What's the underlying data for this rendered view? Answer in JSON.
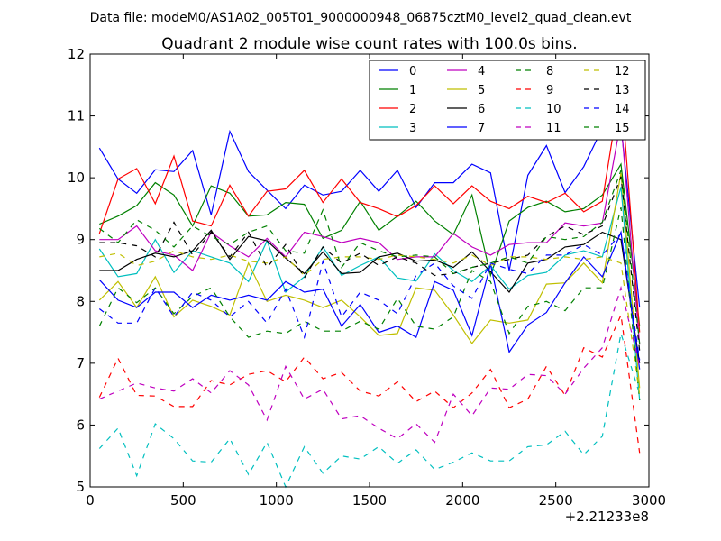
{
  "chart_data": {
    "type": "line",
    "suptitle": "Data file: modeM0/AS1A02_005T01_9000000948_06875cztM0_level2_quad_clean.evt",
    "title": "Quadrant 2 module wise count rates with 100.0s bins.",
    "xlabel": "",
    "ylabel": "",
    "x_offset_label": "+2.21233e8",
    "xlim": [
      0,
      3000
    ],
    "ylim": [
      5,
      12
    ],
    "x_ticks": [
      0,
      500,
      1000,
      1500,
      2000,
      2500,
      3000
    ],
    "y_ticks": [
      5,
      6,
      7,
      8,
      9,
      10,
      11,
      12
    ],
    "grid": false,
    "legend_position": "top-right",
    "x": [
      50,
      150,
      250,
      350,
      450,
      550,
      650,
      750,
      850,
      950,
      1050,
      1150,
      1250,
      1350,
      1450,
      1550,
      1650,
      1750,
      1850,
      1950,
      2050,
      2150,
      2250,
      2350,
      2450,
      2550,
      2650,
      2750,
      2850,
      2950
    ],
    "series": [
      {
        "name": "0",
        "color": "#0000ff",
        "dash": "solid",
        "values": [
          10.48,
          9.98,
          9.75,
          10.13,
          10.1,
          10.44,
          9.4,
          10.75,
          10.1,
          9.8,
          9.5,
          9.88,
          9.72,
          9.78,
          10.12,
          9.78,
          10.12,
          9.52,
          9.92,
          9.92,
          10.22,
          10.08,
          8.5,
          10.04,
          10.52,
          9.76,
          10.18,
          10.8,
          10.85,
          7.9
        ]
      },
      {
        "name": "1",
        "color": "#008000",
        "dash": "solid",
        "values": [
          9.25,
          9.38,
          9.55,
          9.92,
          9.72,
          9.22,
          9.87,
          9.75,
          9.38,
          9.4,
          9.6,
          9.57,
          9.02,
          9.15,
          9.62,
          9.15,
          9.38,
          9.62,
          9.3,
          9.08,
          9.72,
          8.42,
          9.3,
          9.52,
          9.62,
          9.45,
          9.5,
          9.72,
          10.22,
          7.6
        ]
      },
      {
        "name": "2",
        "color": "#ff0000",
        "dash": "solid",
        "values": [
          9.1,
          9.98,
          10.15,
          9.58,
          10.35,
          9.3,
          9.22,
          9.88,
          9.38,
          9.78,
          9.82,
          10.12,
          9.6,
          9.98,
          9.6,
          9.5,
          9.37,
          9.55,
          9.87,
          9.58,
          9.87,
          9.62,
          9.5,
          9.7,
          9.6,
          9.75,
          9.45,
          9.62,
          11.5,
          7.5
        ]
      },
      {
        "name": "3",
        "color": "#00bfbf",
        "dash": "solid",
        "values": [
          8.85,
          8.4,
          8.45,
          9.0,
          8.47,
          8.82,
          8.72,
          8.62,
          8.32,
          8.98,
          8.15,
          8.4,
          8.88,
          8.42,
          8.58,
          8.72,
          8.38,
          8.33,
          8.77,
          8.5,
          8.32,
          8.58,
          8.2,
          8.42,
          8.47,
          8.75,
          8.82,
          8.72,
          9.85,
          6.4
        ]
      },
      {
        "name": "4",
        "color": "#bf00bf",
        "dash": "solid",
        "values": [
          9.0,
          9.0,
          9.22,
          8.82,
          8.75,
          8.5,
          9.12,
          8.9,
          8.72,
          9.02,
          8.72,
          9.12,
          9.05,
          8.95,
          9.02,
          8.95,
          8.68,
          8.72,
          8.72,
          9.1,
          8.88,
          8.75,
          8.92,
          8.95,
          8.95,
          9.27,
          9.22,
          9.27,
          10.92,
          7.3
        ]
      },
      {
        "name": "5",
        "color": "#bfbf00",
        "dash": "solid",
        "values": [
          8.02,
          8.32,
          7.9,
          8.4,
          7.75,
          8.02,
          7.92,
          7.78,
          8.62,
          8.0,
          8.1,
          8.02,
          7.9,
          8.02,
          7.75,
          7.45,
          7.48,
          8.22,
          8.18,
          7.78,
          7.32,
          7.7,
          7.65,
          7.7,
          8.28,
          8.3,
          8.62,
          8.3,
          10.08,
          6.6
        ]
      },
      {
        "name": "6",
        "color": "#000000",
        "dash": "solid",
        "values": [
          8.5,
          8.5,
          8.68,
          8.78,
          8.72,
          8.82,
          9.15,
          8.68,
          9.05,
          8.98,
          8.7,
          8.45,
          8.8,
          8.45,
          8.47,
          8.72,
          8.78,
          8.65,
          8.67,
          8.55,
          8.8,
          8.48,
          8.15,
          8.62,
          8.68,
          8.88,
          8.92,
          9.12,
          9.0,
          7.0
        ]
      },
      {
        "name": "7",
        "color": "#0000ff",
        "dash": "solid",
        "values": [
          8.35,
          8.02,
          7.9,
          8.15,
          8.15,
          7.9,
          8.1,
          8.02,
          8.1,
          8.02,
          8.32,
          8.15,
          8.2,
          7.6,
          7.95,
          7.5,
          7.6,
          7.42,
          8.32,
          8.18,
          7.45,
          8.6,
          7.18,
          7.62,
          7.82,
          8.3,
          8.72,
          8.4,
          9.12,
          6.9
        ]
      },
      {
        "name": "8",
        "color": "#008000",
        "dash": "dashed",
        "values": [
          7.6,
          8.22,
          7.98,
          8.22,
          7.8,
          8.08,
          8.22,
          7.75,
          7.42,
          7.52,
          7.48,
          7.68,
          7.52,
          7.52,
          7.68,
          7.55,
          8.05,
          7.6,
          7.55,
          7.75,
          8.5,
          8.32,
          7.48,
          7.92,
          8.0,
          7.85,
          8.22,
          8.22,
          9.52,
          6.4
        ]
      },
      {
        "name": "9",
        "color": "#ff0000",
        "dash": "dashed",
        "values": [
          6.45,
          7.08,
          6.48,
          6.47,
          6.3,
          6.3,
          6.72,
          6.65,
          6.82,
          6.88,
          6.7,
          7.1,
          6.75,
          6.85,
          6.55,
          6.47,
          6.7,
          6.38,
          6.55,
          6.28,
          6.52,
          6.9,
          6.28,
          6.42,
          6.95,
          6.48,
          7.25,
          7.1,
          7.78,
          5.55
        ]
      },
      {
        "name": "10",
        "color": "#00bfbf",
        "dash": "dashed",
        "values": [
          5.62,
          5.95,
          5.18,
          6.02,
          5.78,
          5.42,
          5.4,
          5.78,
          5.2,
          5.72,
          5.0,
          5.65,
          5.22,
          5.5,
          5.45,
          5.65,
          5.38,
          5.6,
          5.28,
          5.4,
          5.55,
          5.42,
          5.42,
          5.65,
          5.68,
          5.9,
          5.52,
          5.82,
          7.48,
          6.5
        ]
      },
      {
        "name": "11",
        "color": "#bf00bf",
        "dash": "dashed",
        "values": [
          6.42,
          6.55,
          6.68,
          6.6,
          6.55,
          6.75,
          6.52,
          6.88,
          6.65,
          6.08,
          6.95,
          6.42,
          6.58,
          6.1,
          6.15,
          5.95,
          5.78,
          6.02,
          5.72,
          6.5,
          6.15,
          6.6,
          6.58,
          6.82,
          6.8,
          6.5,
          6.92,
          7.25,
          8.22,
          6.95
        ]
      },
      {
        "name": "12",
        "color": "#bfbf00",
        "dash": "dashed",
        "values": [
          8.72,
          8.78,
          8.58,
          8.65,
          8.82,
          8.72,
          8.68,
          8.75,
          8.65,
          8.62,
          8.72,
          8.42,
          8.68,
          8.72,
          8.72,
          8.68,
          8.75,
          8.72,
          8.68,
          8.62,
          8.75,
          8.58,
          8.72,
          8.72,
          8.68,
          8.72,
          8.68,
          8.72,
          8.62,
          6.5
        ]
      },
      {
        "name": "13",
        "color": "#000000",
        "dash": "dashed",
        "values": [
          8.95,
          8.95,
          8.9,
          8.72,
          9.28,
          8.75,
          9.12,
          8.72,
          9.12,
          8.55,
          8.92,
          8.38,
          8.88,
          8.62,
          8.78,
          8.58,
          8.72,
          8.62,
          8.42,
          8.45,
          8.55,
          8.62,
          8.68,
          8.75,
          9.05,
          9.22,
          9.08,
          9.22,
          10.02,
          7.2
        ]
      },
      {
        "name": "14",
        "color": "#0000ff",
        "dash": "dashed",
        "values": [
          7.88,
          7.65,
          7.65,
          8.22,
          7.75,
          8.15,
          8.02,
          7.75,
          8.0,
          7.65,
          8.2,
          7.42,
          8.65,
          7.75,
          8.15,
          8.02,
          7.8,
          8.42,
          8.62,
          8.25,
          8.05,
          8.62,
          8.52,
          8.45,
          8.75,
          8.75,
          8.92,
          8.75,
          9.1,
          7.05
        ]
      },
      {
        "name": "15",
        "color": "#008000",
        "dash": "dashed",
        "values": [
          9.18,
          8.95,
          9.32,
          9.15,
          8.88,
          9.22,
          9.05,
          8.92,
          9.12,
          9.22,
          8.82,
          8.78,
          9.48,
          8.55,
          8.95,
          8.82,
          8.72,
          8.75,
          8.72,
          8.45,
          8.55,
          8.62,
          8.72,
          8.62,
          9.05,
          9.0,
          9.05,
          9.28,
          10.12,
          7.32
        ]
      }
    ]
  }
}
